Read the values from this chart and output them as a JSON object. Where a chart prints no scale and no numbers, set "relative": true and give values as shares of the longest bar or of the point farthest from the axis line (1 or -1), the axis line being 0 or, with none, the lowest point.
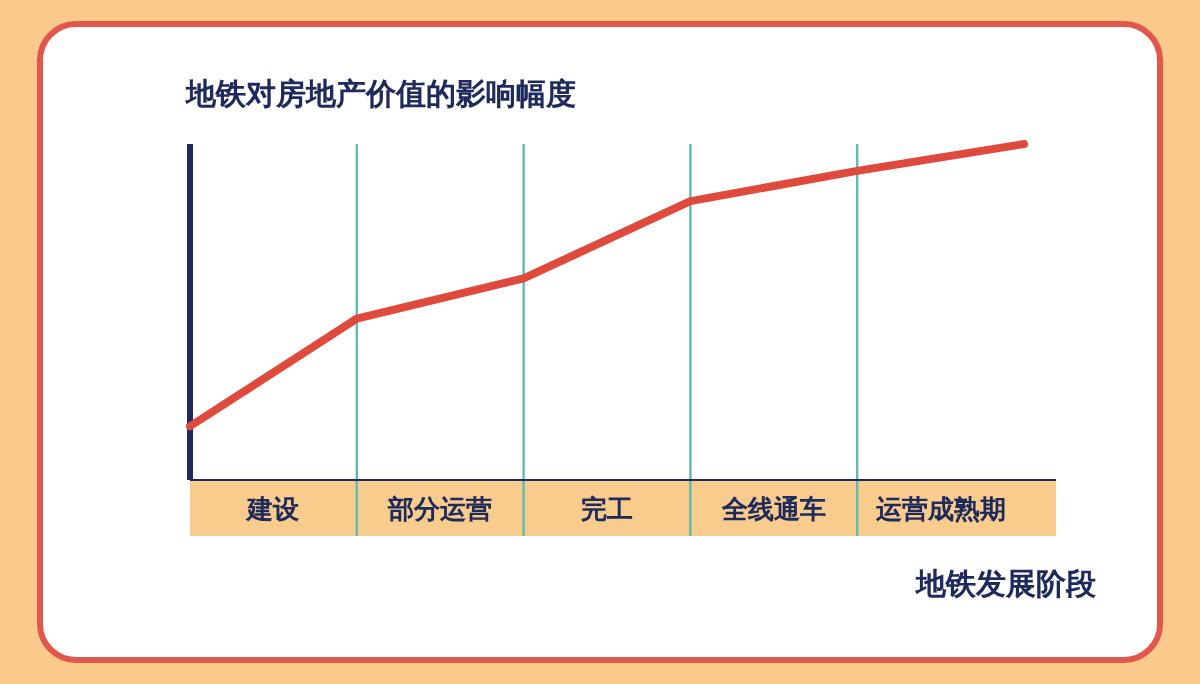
{
  "chart_data": {
    "type": "line",
    "title": "地铁对房地产价值的影响幅度",
    "xlabel": "地铁发展阶段",
    "relative": true,
    "categories": [
      null,
      null,
      null,
      null,
      null,
      null
    ],
    "series": [
      {
        "color": "#e04a3c",
        "values": [
          0.16,
          0.48,
          0.6,
          0.83,
          0.92,
          1.0
        ]
      }
    ],
    "annotations": [
      "建设",
      "部分运营",
      "完工",
      "全线通车",
      "运营成熟期"
    ],
    "grid": "x",
    "marker": "none",
    "line_style": "solid"
  }
}
